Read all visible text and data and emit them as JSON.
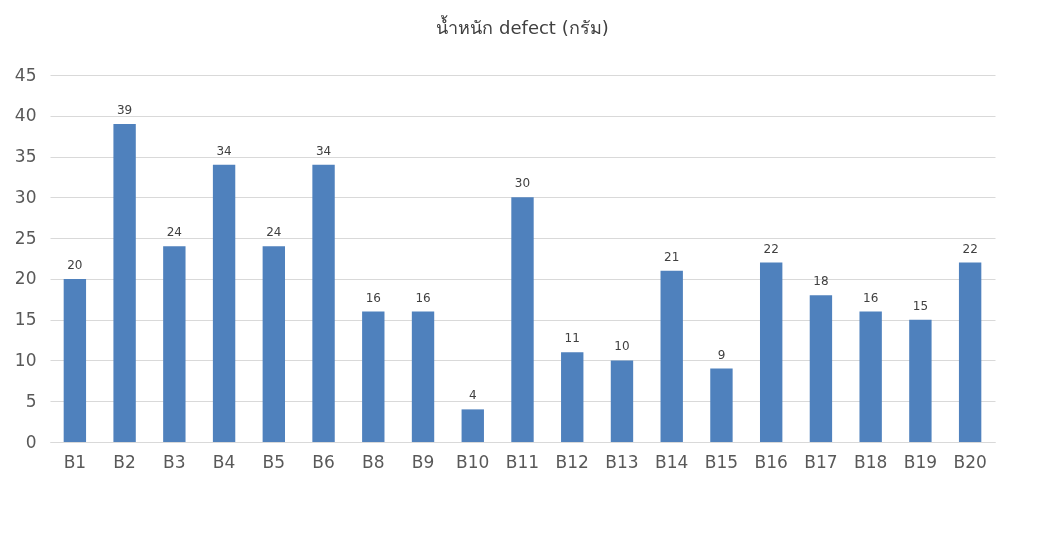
{
  "chart_data": {
    "type": "bar",
    "title": "น้ำหนัก defect (กรัม)",
    "categories": [
      "B1",
      "B2",
      "B3",
      "B4",
      "B5",
      "B6",
      "B8",
      "B9",
      "B10",
      "B11",
      "B12",
      "B13",
      "B14",
      "B15",
      "B16",
      "B17",
      "B18",
      "B19",
      "B20"
    ],
    "values": [
      20,
      39,
      24,
      34,
      24,
      34,
      16,
      16,
      4,
      30,
      11,
      10,
      21,
      9,
      22,
      18,
      16,
      15,
      22
    ],
    "color": "#4f81bd",
    "ylim": [
      0,
      45
    ],
    "yticks": [
      0,
      5,
      10,
      15,
      20,
      25,
      30,
      35,
      40,
      45
    ],
    "grid": "y",
    "data_labels": true
  }
}
